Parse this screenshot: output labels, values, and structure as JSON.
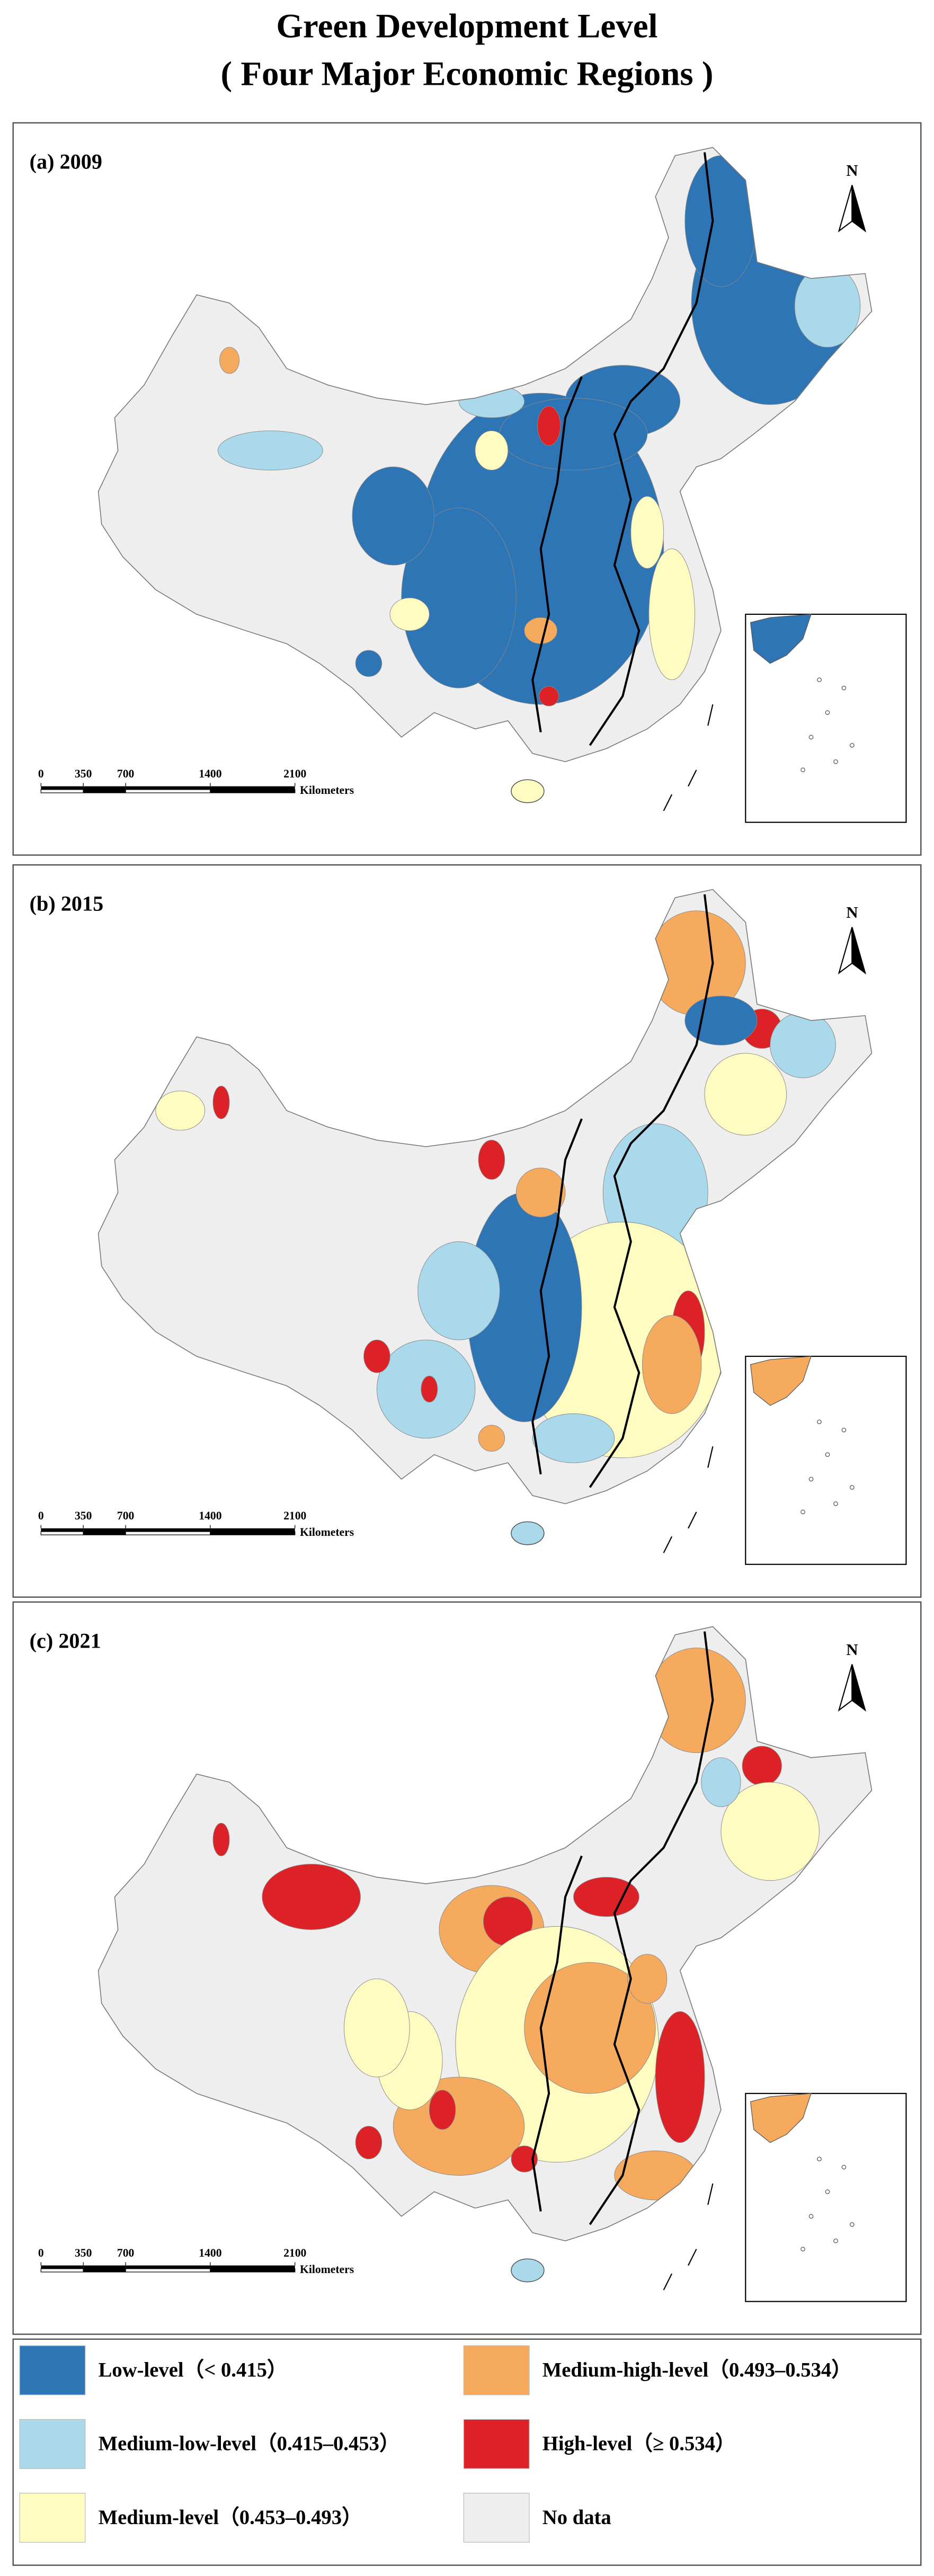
{
  "title": [
    "Green Development Level",
    "( Four Major Economic Regions )"
  ],
  "panels": [
    {
      "label": "(a) 2009"
    },
    {
      "label": "(b) 2015"
    },
    {
      "label": "(c) 2021"
    }
  ],
  "north": "N",
  "scale_bar": {
    "ticks": [
      0,
      350,
      700,
      1400,
      2100
    ],
    "unit": "Kilometers"
  },
  "legend": [
    {
      "label": "Low-level（< 0.415）",
      "color": "#2e75b6"
    },
    {
      "label": "Medium-low-level（0.415–0.453）",
      "color": "#a9d9ea"
    },
    {
      "label": "Medium-level（0.453–0.493）",
      "color": "#fffcc2"
    },
    {
      "label": "Medium-high-level（0.493–0.534）",
      "color": "#f6aa5e"
    },
    {
      "label": "High-level（≥ 0.534）",
      "color": "#dc2127"
    },
    {
      "label": "No data",
      "color": "#eeeeee"
    }
  ]
}
